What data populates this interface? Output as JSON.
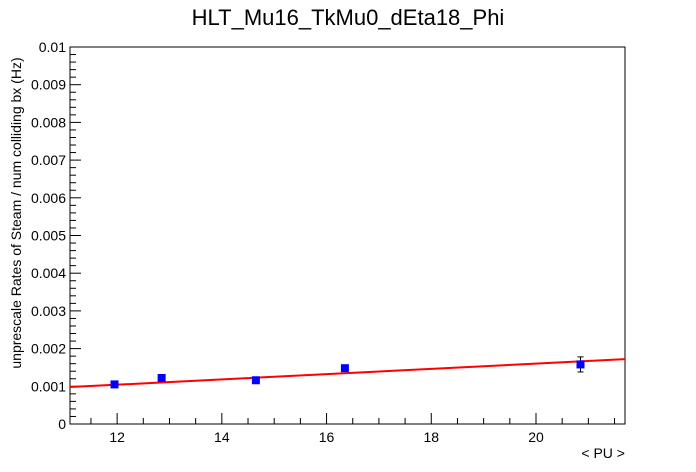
{
  "chart_data": {
    "type": "scatter",
    "title": "HLT_Mu16_TkMu0_dEta18_Phi",
    "xlabel": "< PU >",
    "ylabel": "unprescale Rates of Steam / num colliding bx (Hz)",
    "xlim": [
      11.1,
      21.7
    ],
    "ylim": [
      0,
      0.01
    ],
    "x_ticks": [
      12,
      14,
      16,
      18,
      20
    ],
    "y_ticks": [
      0,
      0.001,
      0.002,
      0.003,
      0.004,
      0.005,
      0.006,
      0.007,
      0.008,
      0.009,
      0.01
    ],
    "x_tick_labels": [
      "12",
      "14",
      "16",
      "18",
      "20"
    ],
    "y_tick_labels": [
      "0",
      "0.001",
      "0.002",
      "0.003",
      "0.004",
      "0.005",
      "0.006",
      "0.007",
      "0.008",
      "0.009",
      "0.01"
    ],
    "grid": false,
    "series": [
      {
        "points": [
          {
            "x": 11.95,
            "y": 0.00105,
            "err": 5e-05
          },
          {
            "x": 12.85,
            "y": 0.00122,
            "err": 6e-05
          },
          {
            "x": 14.65,
            "y": 0.00116,
            "err": 5e-05
          },
          {
            "x": 16.35,
            "y": 0.00148,
            "err": 7e-05
          },
          {
            "x": 20.85,
            "y": 0.00158,
            "err": 0.0002
          }
        ],
        "color": "#0000ff"
      }
    ],
    "fit": {
      "type": "linear",
      "x": [
        11.1,
        21.7
      ],
      "y": [
        0.00098,
        0.00172
      ],
      "color": "#ff0000"
    }
  }
}
